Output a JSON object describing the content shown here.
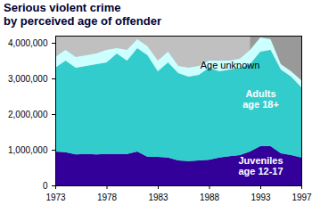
{
  "chart_data": {
    "type": "area",
    "title": [
      "Serious violent crime",
      "by perceived age of offender"
    ],
    "stacked": true,
    "grid": false,
    "x": [
      1973,
      1974,
      1975,
      1976,
      1977,
      1978,
      1979,
      1980,
      1981,
      1982,
      1983,
      1984,
      1985,
      1986,
      1987,
      1988,
      1989,
      1990,
      1991,
      1992,
      1993,
      1994,
      1995,
      1996,
      1997
    ],
    "series": [
      {
        "name": "Juveniles age 12-17",
        "color": "#330099",
        "values": [
          950000,
          930000,
          870000,
          880000,
          870000,
          880000,
          880000,
          880000,
          950000,
          800000,
          800000,
          780000,
          700000,
          680000,
          700000,
          720000,
          780000,
          820000,
          850000,
          950000,
          1100000,
          1100000,
          900000,
          850000,
          780000
        ]
      },
      {
        "name": "Adults age 18+",
        "color": "#33cccc",
        "values": [
          2350000,
          2570000,
          2430000,
          2470000,
          2530000,
          2570000,
          2820000,
          2620000,
          2900000,
          2850000,
          2400000,
          2670000,
          2450000,
          2370000,
          2400000,
          2580000,
          2420000,
          2430000,
          2450000,
          2450000,
          2650000,
          2700000,
          2350000,
          2200000,
          1970000
        ]
      },
      {
        "name": "Age unknown",
        "color": "#ccffff",
        "values": [
          300000,
          300000,
          300000,
          300000,
          300000,
          350000,
          150000,
          300000,
          250000,
          250000,
          300000,
          300000,
          200000,
          250000,
          250000,
          200000,
          300000,
          250000,
          250000,
          400000,
          400000,
          300000,
          150000,
          150000,
          200000
        ]
      }
    ],
    "shaded_x": [
      1992,
      1997
    ],
    "xlim": [
      1973,
      1997
    ],
    "xticks": [
      1973,
      1978,
      1983,
      1988,
      1993,
      1997
    ],
    "ylim": [
      0,
      4200000
    ],
    "yticks": [
      0,
      {
        "value": 1000000,
        "label": "1,000,000"
      },
      {
        "value": 2000000,
        "label": "2,000,000"
      },
      {
        "value": 3000000,
        "label": "3,000,000"
      },
      {
        "value": 4000000,
        "label": "4,000,000"
      }
    ]
  }
}
